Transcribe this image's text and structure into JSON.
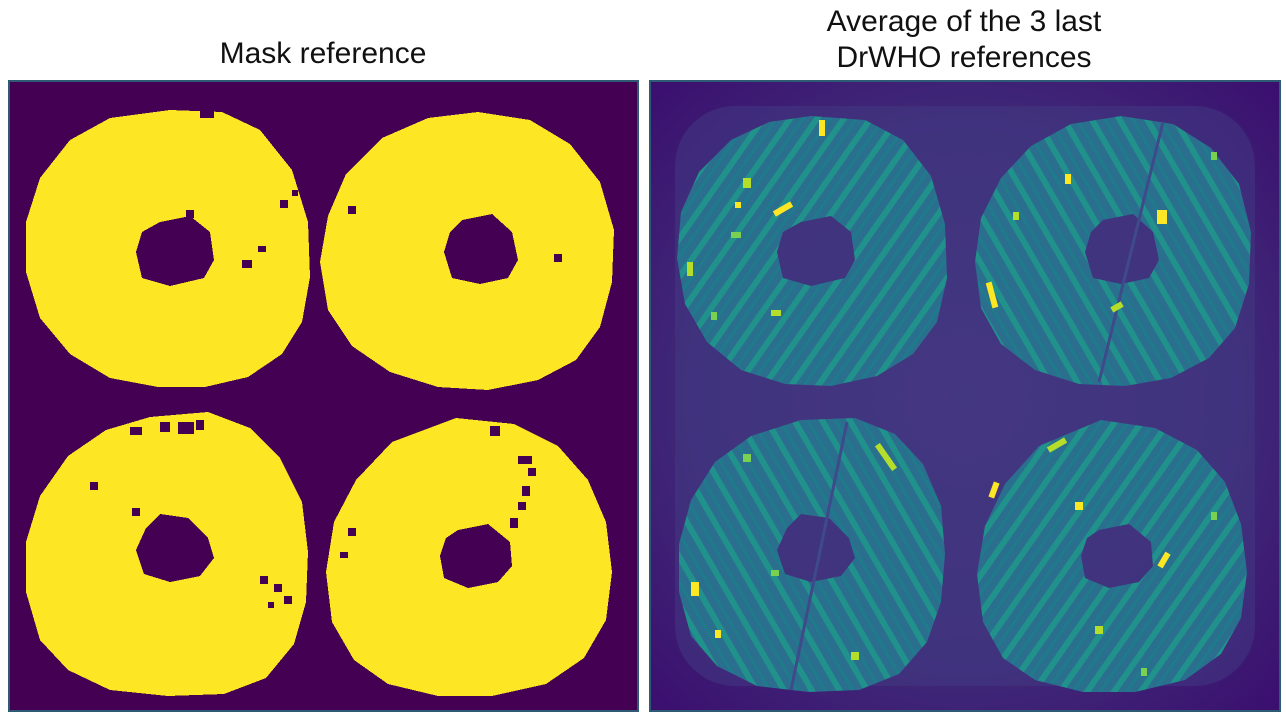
{
  "figure": {
    "left_panel": {
      "title": "Mask reference",
      "colors": {
        "background": "#440154",
        "foreground": "#fde725"
      }
    },
    "right_panel": {
      "title_line1": "Average of the 3 last",
      "title_line2": "DrWHO references",
      "colors": {
        "background": "#3b0f6f",
        "low": "#3e4a89",
        "mid": "#26838f",
        "high": "#5ec962",
        "peak": "#fde725"
      }
    },
    "frame_color": "#2e5a74"
  }
}
